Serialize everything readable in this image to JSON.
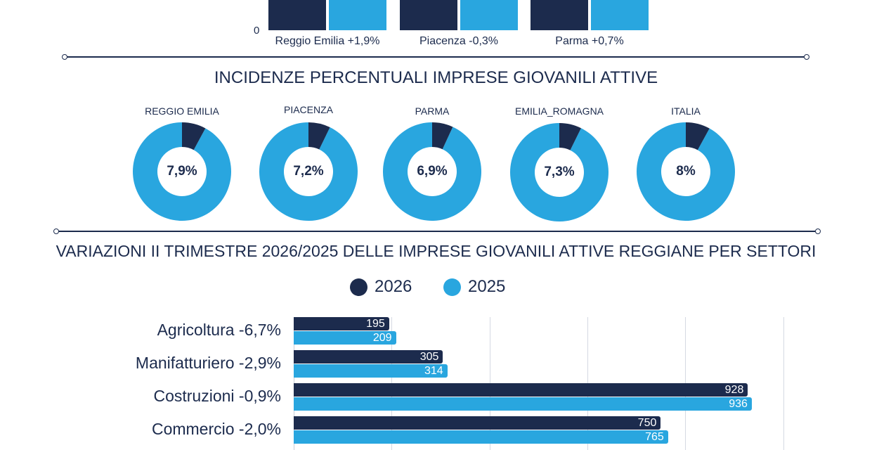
{
  "top_chart": {
    "axis_zero_label": "0",
    "categories": [
      "Reggio Emilia +1,9%",
      "Piacenza -0,3%",
      "Parma +0,7%"
    ]
  },
  "donut_section": {
    "title": "INCIDENZE PERCENTUALI IMPRESE GIOVANILI ATTIVE",
    "items": [
      {
        "name": "REGGIO EMILIA",
        "value_label": "7,9%",
        "value": 7.9
      },
      {
        "name": "PIACENZA",
        "value_label": "7,2%",
        "value": 7.2
      },
      {
        "name": "PARMA",
        "value_label": "6,9%",
        "value": 6.9
      },
      {
        "name": "EMILIA_ROMAGNA",
        "value_label": "7,3%",
        "value": 7.3
      },
      {
        "name": "ITALIA",
        "value_label": "8%",
        "value": 8
      }
    ]
  },
  "sector_section": {
    "title": "VARIAZIONI II TRIMESTRE 2026/2025 DELLE IMPRESE GIOVANILI ATTIVE REGGIANE PER SETTORI",
    "legend": [
      "2026",
      "2025"
    ]
  },
  "colors": {
    "dark": "#1c2b4d",
    "light": "#29a6df"
  },
  "chart_data": [
    {
      "type": "bar",
      "categories": [
        "Reggio Emilia +1,9%",
        "Piacenza -0,3%",
        "Parma +0,7%"
      ],
      "series": [],
      "note_visible": "bars cropped at top; only the 0 baseline is visible"
    },
    {
      "type": "pie",
      "title": "INCIDENZE PERCENTUALI IMPRESE GIOVANILI ATTIVE",
      "categories": [
        "REGGIO EMILIA",
        "PIACENZA",
        "PARMA",
        "EMILIA_ROMAGNA",
        "ITALIA"
      ],
      "values": [
        7.9,
        7.2,
        6.9,
        7.3,
        8
      ]
    },
    {
      "type": "bar",
      "orientation": "horizontal",
      "title": "VARIAZIONI II TRIMESTRE 2026/2025 DELLE IMPRESE GIOVANILI ATTIVE REGGIANE PER SETTORI",
      "categories": [
        "Agricoltura -6,7%",
        "Manifatturiero -2,9%",
        "Costruzioni -0,9%",
        "Commercio -2,0%"
      ],
      "series": [
        {
          "name": "2026",
          "values": [
            195,
            305,
            928,
            750
          ]
        },
        {
          "name": "2025",
          "values": [
            209,
            314,
            936,
            765
          ]
        }
      ],
      "xlim": [
        0,
        1000
      ],
      "grid": true,
      "legend": "top-center"
    }
  ]
}
